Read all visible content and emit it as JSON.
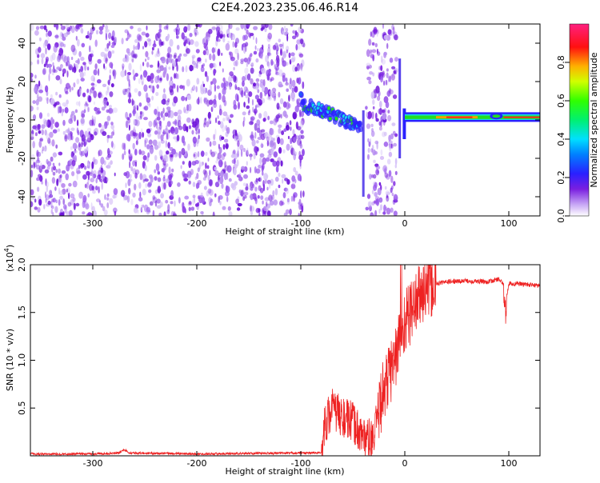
{
  "title": "C2E4.2023.235.06.46.R14",
  "colors": {
    "snr_line": "#ee2222",
    "spectrogram_noise": "#7a1fe0",
    "ridge_hot": "#ff2020",
    "ridge_green": "#22dd22",
    "ridge_cyan": "#18d8e8"
  },
  "chart_data": [
    {
      "type": "heatmap",
      "xlabel": "Height of straight line (km)",
      "ylabel": "Frequency (Hz)",
      "xlim": [
        -360,
        130
      ],
      "ylim": [
        -50,
        50
      ],
      "x_ticks": [
        -300,
        -200,
        -100,
        0,
        100
      ],
      "x_tick_labels": [
        "-300",
        "-200",
        "-100",
        "0",
        "100"
      ],
      "y_ticks": [
        -40,
        -20,
        0,
        20,
        40
      ],
      "y_tick_labels": [
        "-40",
        "-20",
        "0",
        "20",
        "40"
      ],
      "colorbar": {
        "label": "Normalized spectral amplitude",
        "range": [
          0,
          1
        ],
        "ticks": [
          0.0,
          0.2,
          0.4,
          0.6,
          0.8
        ],
        "tick_labels": [
          "0.0",
          "0.2",
          "0.4",
          "0.6",
          "0.8"
        ],
        "colors": [
          "#ffffff",
          "#b080f0",
          "#6a1fe0",
          "#2020ff",
          "#00e0ff",
          "#00ff40",
          "#ffff00",
          "#ff8000",
          "#ff0000",
          "#ff2080"
        ]
      },
      "noise_regions": [
        [
          -360,
          -278
        ],
        [
          -272,
          -97
        ],
        [
          -37,
          -8
        ]
      ],
      "ridge": [
        {
          "x": -100,
          "freq": 12,
          "amp": 0.3
        },
        {
          "x": -95,
          "freq": 5,
          "amp": 0.5
        },
        {
          "x": -90,
          "freq": 7,
          "amp": 0.45
        },
        {
          "x": -80,
          "freq": 5,
          "amp": 0.5
        },
        {
          "x": -70,
          "freq": 3,
          "amp": 0.5
        },
        {
          "x": -60,
          "freq": 0,
          "amp": 0.45
        },
        {
          "x": -50,
          "freq": -2,
          "amp": 0.4
        },
        {
          "x": -42,
          "freq": -3,
          "amp": 0.35
        },
        {
          "x": 0,
          "freq": 2,
          "amp": 0.5
        },
        {
          "x": 10,
          "freq": 1,
          "amp": 0.6
        },
        {
          "x": 30,
          "freq": 1,
          "amp": 0.65
        },
        {
          "x": 60,
          "freq": 1,
          "amp": 0.7
        },
        {
          "x": 90,
          "freq": 1,
          "amp": 0.75
        },
        {
          "x": 130,
          "freq": 1,
          "amp": 0.7
        }
      ]
    },
    {
      "type": "line",
      "xlabel": "Height of straight line (km)",
      "ylabel": "SNR (10 * v/v)",
      "y_multiplier_label": "(x10",
      "y_multiplier_exp": "4",
      "xlim": [
        -360,
        130
      ],
      "ylim": [
        0,
        20000
      ],
      "x_ticks": [
        -300,
        -200,
        -100,
        0,
        100
      ],
      "x_tick_labels": [
        "-300",
        "-200",
        "-100",
        "0",
        "100"
      ],
      "y_ticks": [
        5000,
        10000,
        15000,
        20000
      ],
      "y_tick_labels": [
        "0.5",
        "1.0",
        "1.5",
        "2.0"
      ],
      "series": [
        {
          "x": [
            -360,
            -300,
            -275,
            -270,
            -265,
            -200,
            -100,
            -80,
            -78,
            -70,
            -60,
            -50,
            -40,
            -30,
            -25,
            -20,
            -10,
            -5,
            0,
            10,
            20,
            30,
            40,
            60,
            80,
            90,
            95,
            97,
            100,
            110,
            130
          ],
          "y": [
            200,
            200,
            300,
            700,
            300,
            200,
            300,
            300,
            3000,
            5000,
            4000,
            3500,
            2000,
            1500,
            5000,
            7000,
            10000,
            12000,
            14000,
            16000,
            17500,
            18000,
            18200,
            18300,
            18200,
            18500,
            18000,
            16000,
            18000,
            18000,
            17800
          ]
        }
      ]
    }
  ]
}
